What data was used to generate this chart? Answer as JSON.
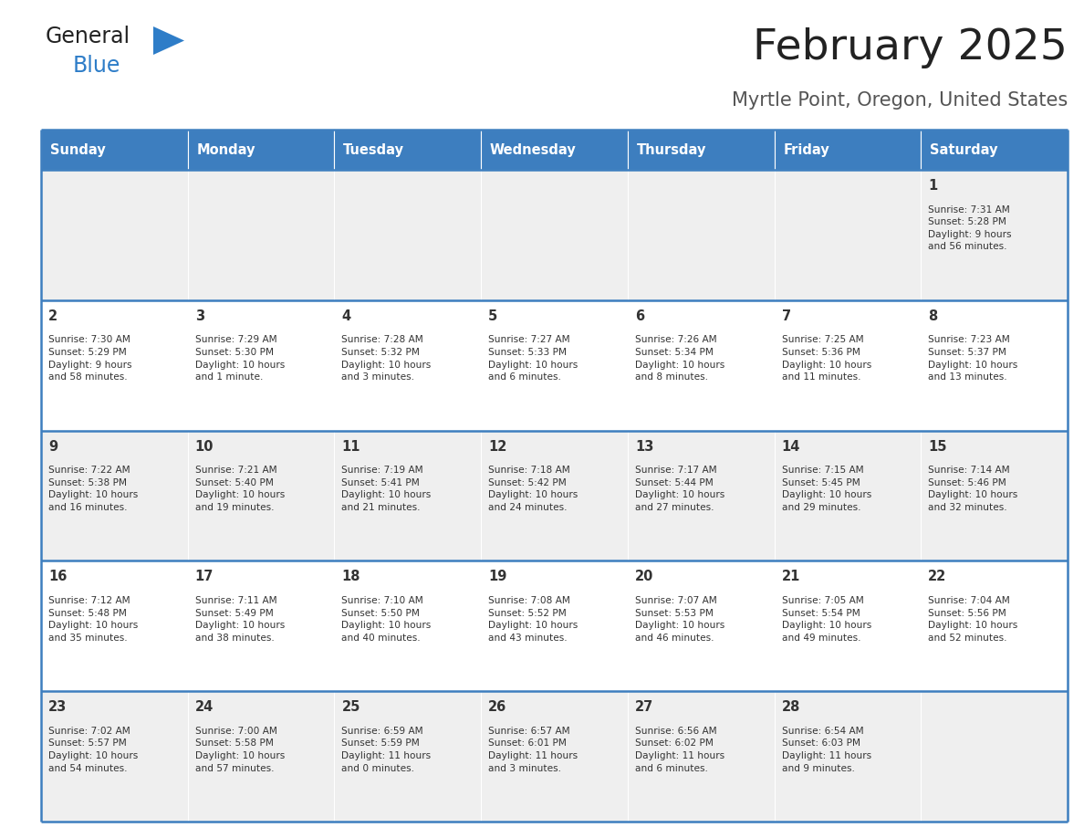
{
  "title": "February 2025",
  "subtitle": "Myrtle Point, Oregon, United States",
  "header_color": "#3d7ebf",
  "header_text_color": "#ffffff",
  "days_of_week": [
    "Sunday",
    "Monday",
    "Tuesday",
    "Wednesday",
    "Thursday",
    "Friday",
    "Saturday"
  ],
  "row_bg_colors": [
    "#efefef",
    "#ffffff"
  ],
  "cell_border_color": "#3d7ebf",
  "text_color": "#333333",
  "title_color": "#222222",
  "subtitle_color": "#555555",
  "logo_general_color": "#222222",
  "logo_blue_color": "#2e7dc8",
  "calendar_data": [
    [
      null,
      null,
      null,
      null,
      null,
      null,
      {
        "day": 1,
        "sunrise": "7:31 AM",
        "sunset": "5:28 PM",
        "daylight": "9 hours\nand 56 minutes."
      }
    ],
    [
      {
        "day": 2,
        "sunrise": "7:30 AM",
        "sunset": "5:29 PM",
        "daylight": "9 hours\nand 58 minutes."
      },
      {
        "day": 3,
        "sunrise": "7:29 AM",
        "sunset": "5:30 PM",
        "daylight": "10 hours\nand 1 minute."
      },
      {
        "day": 4,
        "sunrise": "7:28 AM",
        "sunset": "5:32 PM",
        "daylight": "10 hours\nand 3 minutes."
      },
      {
        "day": 5,
        "sunrise": "7:27 AM",
        "sunset": "5:33 PM",
        "daylight": "10 hours\nand 6 minutes."
      },
      {
        "day": 6,
        "sunrise": "7:26 AM",
        "sunset": "5:34 PM",
        "daylight": "10 hours\nand 8 minutes."
      },
      {
        "day": 7,
        "sunrise": "7:25 AM",
        "sunset": "5:36 PM",
        "daylight": "10 hours\nand 11 minutes."
      },
      {
        "day": 8,
        "sunrise": "7:23 AM",
        "sunset": "5:37 PM",
        "daylight": "10 hours\nand 13 minutes."
      }
    ],
    [
      {
        "day": 9,
        "sunrise": "7:22 AM",
        "sunset": "5:38 PM",
        "daylight": "10 hours\nand 16 minutes."
      },
      {
        "day": 10,
        "sunrise": "7:21 AM",
        "sunset": "5:40 PM",
        "daylight": "10 hours\nand 19 minutes."
      },
      {
        "day": 11,
        "sunrise": "7:19 AM",
        "sunset": "5:41 PM",
        "daylight": "10 hours\nand 21 minutes."
      },
      {
        "day": 12,
        "sunrise": "7:18 AM",
        "sunset": "5:42 PM",
        "daylight": "10 hours\nand 24 minutes."
      },
      {
        "day": 13,
        "sunrise": "7:17 AM",
        "sunset": "5:44 PM",
        "daylight": "10 hours\nand 27 minutes."
      },
      {
        "day": 14,
        "sunrise": "7:15 AM",
        "sunset": "5:45 PM",
        "daylight": "10 hours\nand 29 minutes."
      },
      {
        "day": 15,
        "sunrise": "7:14 AM",
        "sunset": "5:46 PM",
        "daylight": "10 hours\nand 32 minutes."
      }
    ],
    [
      {
        "day": 16,
        "sunrise": "7:12 AM",
        "sunset": "5:48 PM",
        "daylight": "10 hours\nand 35 minutes."
      },
      {
        "day": 17,
        "sunrise": "7:11 AM",
        "sunset": "5:49 PM",
        "daylight": "10 hours\nand 38 minutes."
      },
      {
        "day": 18,
        "sunrise": "7:10 AM",
        "sunset": "5:50 PM",
        "daylight": "10 hours\nand 40 minutes."
      },
      {
        "day": 19,
        "sunrise": "7:08 AM",
        "sunset": "5:52 PM",
        "daylight": "10 hours\nand 43 minutes."
      },
      {
        "day": 20,
        "sunrise": "7:07 AM",
        "sunset": "5:53 PM",
        "daylight": "10 hours\nand 46 minutes."
      },
      {
        "day": 21,
        "sunrise": "7:05 AM",
        "sunset": "5:54 PM",
        "daylight": "10 hours\nand 49 minutes."
      },
      {
        "day": 22,
        "sunrise": "7:04 AM",
        "sunset": "5:56 PM",
        "daylight": "10 hours\nand 52 minutes."
      }
    ],
    [
      {
        "day": 23,
        "sunrise": "7:02 AM",
        "sunset": "5:57 PM",
        "daylight": "10 hours\nand 54 minutes."
      },
      {
        "day": 24,
        "sunrise": "7:00 AM",
        "sunset": "5:58 PM",
        "daylight": "10 hours\nand 57 minutes."
      },
      {
        "day": 25,
        "sunrise": "6:59 AM",
        "sunset": "5:59 PM",
        "daylight": "11 hours\nand 0 minutes."
      },
      {
        "day": 26,
        "sunrise": "6:57 AM",
        "sunset": "6:01 PM",
        "daylight": "11 hours\nand 3 minutes."
      },
      {
        "day": 27,
        "sunrise": "6:56 AM",
        "sunset": "6:02 PM",
        "daylight": "11 hours\nand 6 minutes."
      },
      {
        "day": 28,
        "sunrise": "6:54 AM",
        "sunset": "6:03 PM",
        "daylight": "11 hours\nand 9 minutes."
      },
      null
    ]
  ],
  "fig_width": 11.88,
  "fig_height": 9.18,
  "dpi": 100
}
